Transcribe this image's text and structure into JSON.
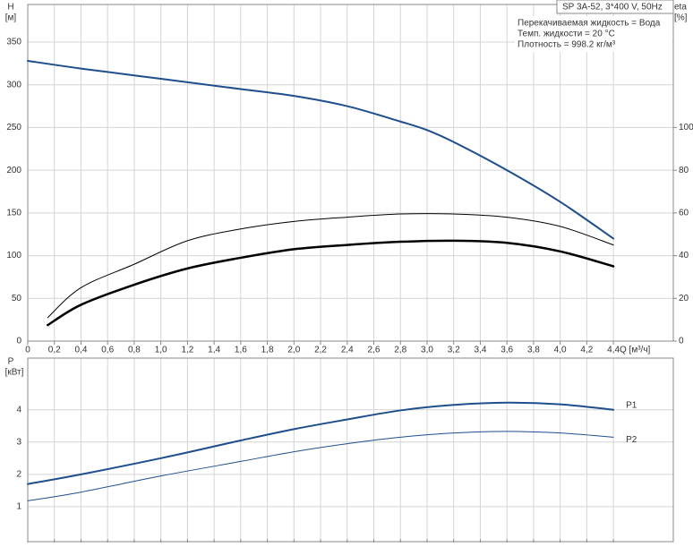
{
  "chart_data": [
    {
      "type": "line",
      "y_label": "H",
      "y_unit": "[м]",
      "y2_label": "eta",
      "y2_unit": "[%]",
      "x_label": "Q [м³/ч]",
      "info_title": "SP 3A-52, 3*400 V, 50Hz",
      "info_lines": [
        "Перекачиваемая жидкость = Вода",
        "Темп. жидкости = 20 °C",
        "Плотность = 998.2 кг/м³"
      ],
      "xlim": [
        0,
        4.85
      ],
      "ylim": [
        0,
        394
      ],
      "y2lim": [
        0,
        157.6
      ],
      "xticks": [
        0,
        {
          "value": 0.2,
          "label": "0,2"
        },
        {
          "value": 0.4,
          "label": "0,4"
        },
        {
          "value": 0.6,
          "label": "0,6"
        },
        {
          "value": 0.8,
          "label": "0,8"
        },
        {
          "value": 1.0,
          "label": "1,0"
        },
        {
          "value": 1.2,
          "label": "1,2"
        },
        {
          "value": 1.4,
          "label": "1,4"
        },
        {
          "value": 1.6,
          "label": "1,6"
        },
        {
          "value": 1.8,
          "label": "1,8"
        },
        {
          "value": 2.0,
          "label": "2,0"
        },
        {
          "value": 2.2,
          "label": "2,2"
        },
        {
          "value": 2.4,
          "label": "2,4"
        },
        {
          "value": 2.6,
          "label": "2,6"
        },
        {
          "value": 2.8,
          "label": "2,8"
        },
        {
          "value": 3.0,
          "label": "3,0"
        },
        {
          "value": 3.2,
          "label": "3,2"
        },
        {
          "value": 3.4,
          "label": "3,4"
        },
        {
          "value": 3.6,
          "label": "3,6"
        },
        {
          "value": 3.8,
          "label": "3,8"
        },
        {
          "value": 4.0,
          "label": "4,0"
        },
        {
          "value": 4.2,
          "label": "4,2"
        },
        {
          "value": 4.4,
          "label": "4,4"
        }
      ],
      "yticks": [
        0,
        50,
        100,
        150,
        200,
        250,
        300,
        350
      ],
      "y2ticks": [
        0,
        20,
        40,
        60,
        80,
        100
      ],
      "grid": true,
      "series": [
        {
          "color": "#1f4e8c",
          "width": 2,
          "x": [
            0,
            0.4,
            1.0,
            1.6,
            2.0,
            2.4,
            2.8,
            3.0,
            3.2,
            3.6,
            4.0,
            4.4
          ],
          "values": [
            328,
            319,
            307,
            295,
            287,
            275,
            257,
            247,
            233,
            200,
            163,
            120
          ]
        },
        {
          "color": "#000000",
          "width": 1,
          "axis": "y2",
          "x": [
            0.15,
            0.4,
            0.8,
            1.2,
            1.6,
            2.0,
            2.4,
            2.8,
            3.2,
            3.6,
            4.0,
            4.4
          ],
          "values": [
            11,
            25,
            36,
            47,
            52.5,
            56,
            58,
            59.5,
            59.5,
            58,
            53.7,
            45
          ]
        },
        {
          "color": "#000000",
          "width": 2.5,
          "axis": "y2",
          "x": [
            0.15,
            0.4,
            0.8,
            1.2,
            1.6,
            2.0,
            2.4,
            2.8,
            3.2,
            3.6,
            4.0,
            4.4
          ],
          "values": [
            7.5,
            17,
            26.4,
            34,
            39,
            43,
            45,
            46.5,
            47,
            46,
            42,
            35
          ]
        }
      ]
    },
    {
      "type": "line",
      "y_label": "P",
      "y_unit": "[кВт]",
      "xlim": [
        0,
        4.85
      ],
      "ylim": [
        0,
        5.6
      ],
      "xticks": [
        0,
        0.2,
        0.4,
        0.6,
        0.8,
        1.0,
        1.2,
        1.4,
        1.6,
        1.8,
        2.0,
        2.2,
        2.4,
        2.6,
        2.8,
        3.0,
        3.2,
        3.4,
        3.6,
        3.8,
        4.0,
        4.2,
        4.4
      ],
      "yticks": [
        1,
        2,
        3,
        4
      ],
      "grid": true,
      "series": [
        {
          "name": "P1",
          "color": "#1f4e8c",
          "width": 2,
          "x": [
            0,
            0.4,
            1.0,
            1.6,
            2.0,
            2.4,
            2.8,
            3.2,
            3.6,
            4.0,
            4.4
          ],
          "values": [
            1.7,
            2.0,
            2.5,
            3.05,
            3.4,
            3.7,
            3.98,
            4.15,
            4.22,
            4.17,
            4.0
          ]
        },
        {
          "name": "P2",
          "color": "#1f4e8c",
          "width": 1,
          "x": [
            0,
            0.4,
            1.0,
            1.6,
            2.0,
            2.4,
            2.8,
            3.2,
            3.6,
            4.0,
            4.4
          ],
          "values": [
            1.18,
            1.45,
            1.95,
            2.4,
            2.7,
            2.95,
            3.15,
            3.28,
            3.33,
            3.28,
            3.15
          ]
        }
      ]
    }
  ]
}
